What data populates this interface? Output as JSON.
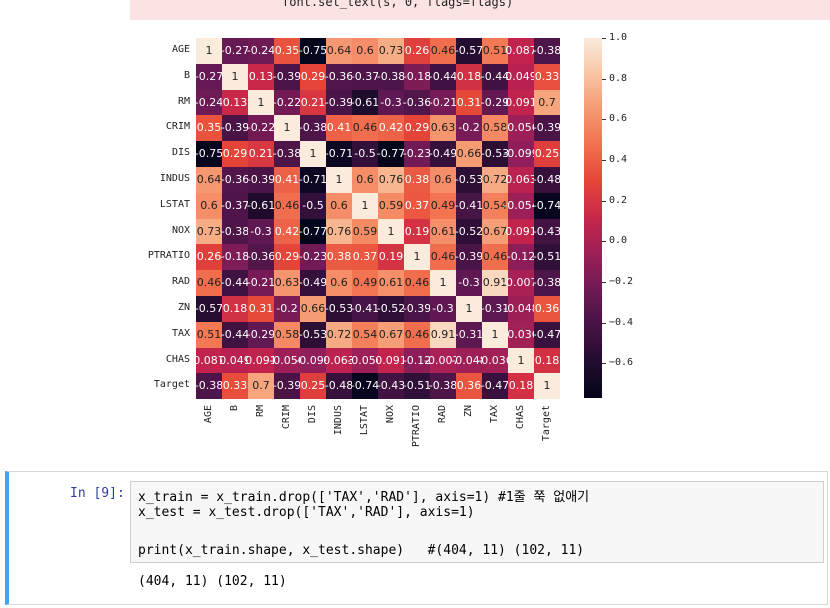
{
  "error_line": "font.set_text(s, 0, flags=flags)",
  "heatmap": {
    "labels": [
      "AGE",
      "B",
      "RM",
      "CRIM",
      "DIS",
      "INDUS",
      "LSTAT",
      "NOX",
      "PTRATIO",
      "RAD",
      "ZN",
      "TAX",
      "CHAS",
      "Target"
    ],
    "colorbar_ticks": [
      "1.0",
      "0.8",
      "0.6",
      "0.4",
      "0.2",
      "0.0",
      "−0.2",
      "−0.4",
      "−0.6"
    ],
    "matrix": [
      [
        "1",
        "-0.27",
        "-0.24",
        "0.35",
        "-0.75",
        "0.64",
        "0.6",
        "0.73",
        "0.26",
        "0.46",
        "-0.57",
        "0.51",
        "0.087",
        "-0.38"
      ],
      [
        "-0.27",
        "1",
        "0.13",
        "-0.39",
        "0.29",
        "-0.36",
        "-0.37",
        "-0.38",
        "-0.18",
        "-0.44",
        "0.18",
        "-0.44",
        "0.049",
        "0.33"
      ],
      [
        "-0.24",
        "0.13",
        "1",
        "-0.22",
        "0.21",
        "-0.39",
        "-0.61",
        "-0.3",
        "-0.36",
        "-0.21",
        "0.31",
        "-0.29",
        "0.091",
        "0.7"
      ],
      [
        "0.35",
        "-0.39",
        "-0.22",
        "1",
        "-0.38",
        "0.41",
        "0.46",
        "0.42",
        "0.29",
        "0.63",
        "-0.2",
        "0.58",
        "-0.056",
        "-0.39"
      ],
      [
        "-0.75",
        "0.29",
        "0.21",
        "-0.38",
        "1",
        "-0.71",
        "-0.5",
        "-0.77",
        "-0.23",
        "-0.49",
        "0.66",
        "-0.53",
        "-0.099",
        "0.25"
      ],
      [
        "0.64",
        "-0.36",
        "-0.39",
        "0.41",
        "-0.71",
        "1",
        "0.6",
        "0.76",
        "0.38",
        "0.6",
        "-0.53",
        "0.72",
        "0.063",
        "-0.48"
      ],
      [
        "0.6",
        "-0.37",
        "-0.61",
        "0.46",
        "-0.5",
        "0.6",
        "1",
        "0.59",
        "0.37",
        "0.49",
        "-0.41",
        "0.54",
        "-0.054",
        "-0.74"
      ],
      [
        "0.73",
        "-0.38",
        "-0.3",
        "0.42",
        "-0.77",
        "0.76",
        "0.59",
        "1",
        "0.19",
        "0.61",
        "-0.52",
        "0.67",
        "0.091",
        "-0.43"
      ],
      [
        "0.26",
        "-0.18",
        "-0.36",
        "0.29",
        "-0.23",
        "0.38",
        "0.37",
        "0.19",
        "1",
        "0.46",
        "-0.39",
        "0.46",
        "-0.12",
        "-0.51"
      ],
      [
        "0.46",
        "-0.44",
        "-0.21",
        "0.63",
        "-0.49",
        "0.6",
        "0.49",
        "0.61",
        "0.46",
        "1",
        "-0.3",
        "0.91",
        "-0.0074",
        "-0.38"
      ],
      [
        "-0.57",
        "0.18",
        "0.31",
        "-0.2",
        "0.66",
        "-0.53",
        "-0.41",
        "-0.52",
        "-0.39",
        "-0.3",
        "1",
        "-0.31",
        "-0.048",
        "0.36"
      ],
      [
        "0.51",
        "-0.44",
        "-0.29",
        "0.58",
        "-0.53",
        "0.72",
        "0.54",
        "0.67",
        "0.46",
        "0.91",
        "-0.31",
        "1",
        "-0.036",
        "-0.47"
      ],
      [
        "0.087",
        "0.049",
        "0.091",
        "-0.056",
        "-0.099",
        "0.063",
        "-0.054",
        "0.091",
        "-0.12",
        "-0.0074",
        "-0.048",
        "-0.036",
        "1",
        "0.18"
      ],
      [
        "-0.38",
        "0.33",
        "0.7",
        "-0.39",
        "0.25",
        "-0.48",
        "-0.74",
        "-0.43",
        "-0.51",
        "-0.38",
        "0.36",
        "-0.47",
        "0.18",
        "1"
      ]
    ]
  },
  "cell": {
    "prompt": "In [9]:",
    "lines": [
      "x_train = x_train.drop(['TAX','RAD'], axis=1) #1줄 쭉 없애기",
      "x_test = x_test.drop(['TAX','RAD'], axis=1)",
      "",
      "print(x_train.shape, x_test.shape)   #(404, 11) (102, 11)"
    ],
    "output": "(404, 11) (102, 11)"
  }
}
